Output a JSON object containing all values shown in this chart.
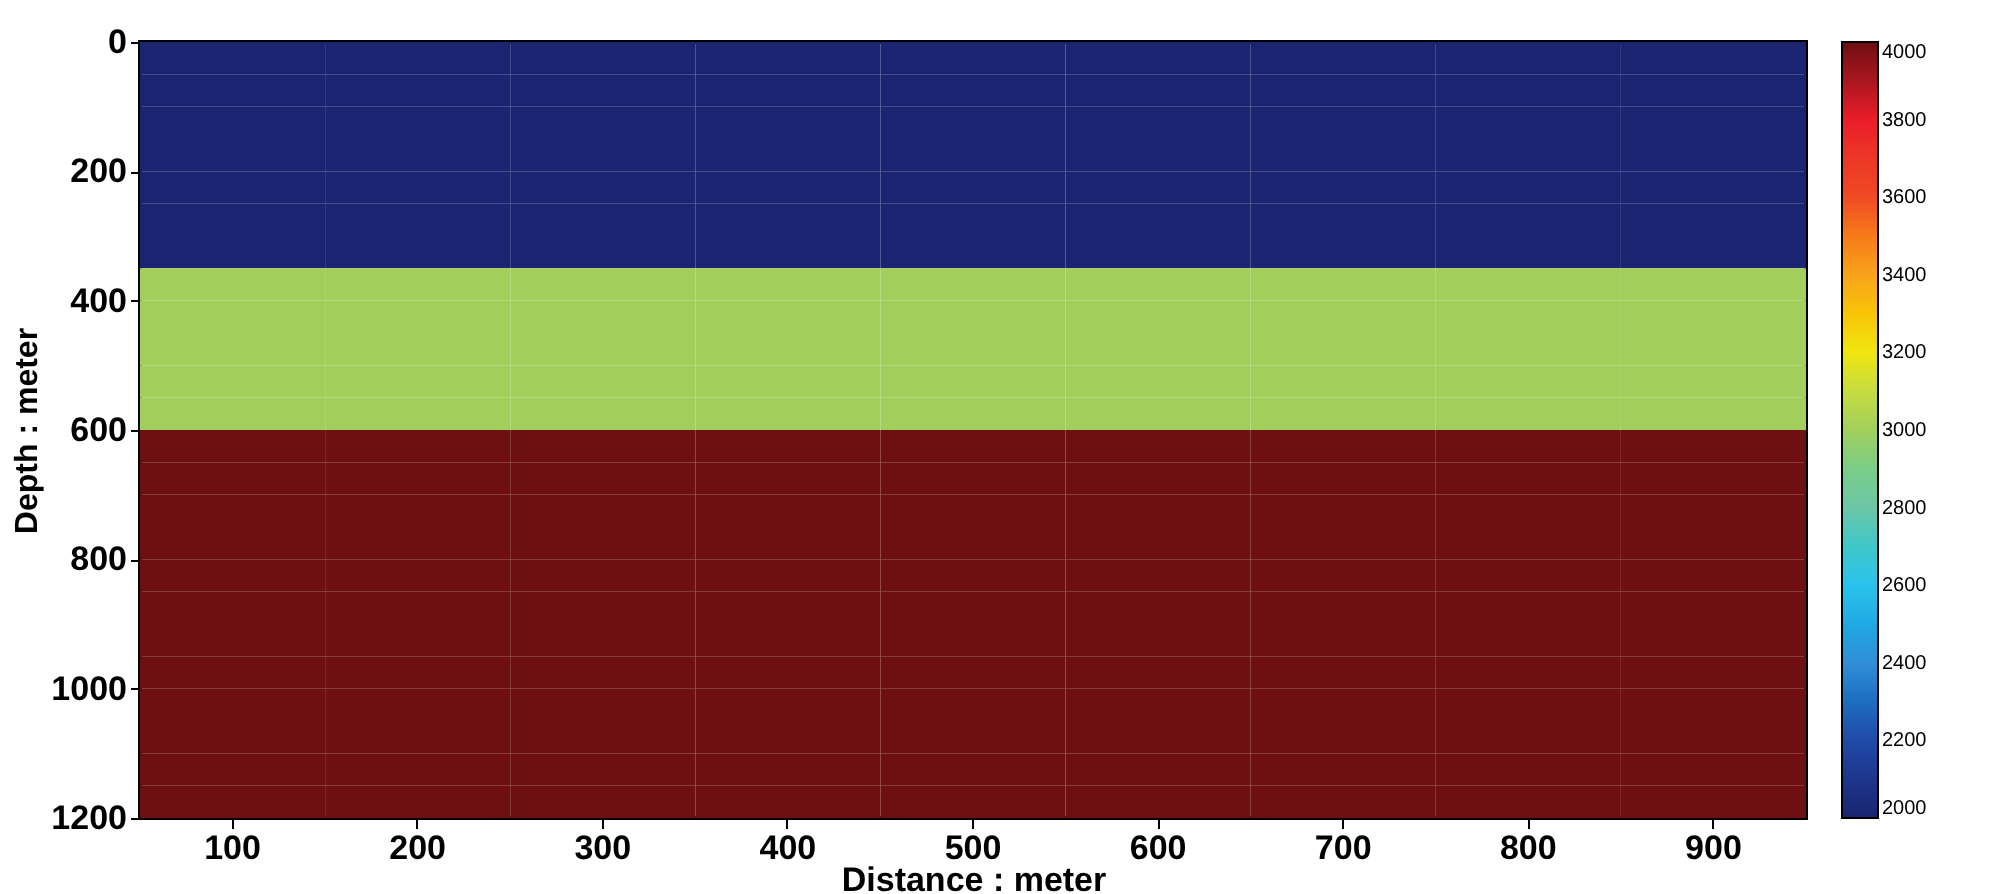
{
  "chart_data": {
    "type": "heatmap",
    "xlabel": "Distance : meter",
    "ylabel": "Depth : meter",
    "categories": [
      "100",
      "200",
      "300",
      "400",
      "500",
      "600",
      "700",
      "800",
      "900"
    ],
    "ylim": [
      1200,
      0
    ],
    "yticks": [
      0,
      200,
      400,
      600,
      800,
      1000,
      1200
    ],
    "cells": [
      [
        2000,
        2000,
        2000,
        2000,
        2000,
        2000,
        2000,
        2000,
        2000
      ],
      [
        2000,
        2000,
        2000,
        2000,
        2000,
        2000,
        2000,
        2000,
        2000
      ],
      [
        2000,
        2000,
        2000,
        2000,
        2000,
        2000,
        2000,
        2000,
        2000
      ],
      [
        2000,
        2000,
        2000,
        2000,
        2000,
        2000,
        2000,
        2000,
        2000
      ],
      [
        2000,
        2000,
        2000,
        2000,
        2000,
        2000,
        2000,
        2000,
        2000
      ],
      [
        2000,
        2000,
        2000,
        2000,
        2000,
        2000,
        2000,
        2000,
        2000
      ],
      [
        2000,
        2000,
        2000,
        2000,
        2000,
        2000,
        2000,
        2000,
        2000
      ],
      [
        3000,
        3000,
        3000,
        3000,
        3000,
        3000,
        3000,
        3000,
        3000
      ],
      [
        3000,
        3000,
        3000,
        3000,
        3000,
        3000,
        3000,
        3000,
        3000
      ],
      [
        3000,
        3000,
        3000,
        3000,
        3000,
        3000,
        3000,
        3000,
        3000
      ],
      [
        3000,
        3000,
        3000,
        3000,
        3000,
        3000,
        3000,
        3000,
        3000
      ],
      [
        3000,
        3000,
        3000,
        3000,
        3000,
        3000,
        3000,
        3000,
        3000
      ],
      [
        4000,
        4000,
        4000,
        4000,
        4000,
        4000,
        4000,
        4000,
        4000
      ],
      [
        4000,
        4000,
        4000,
        4000,
        4000,
        4000,
        4000,
        4000,
        4000
      ],
      [
        4000,
        4000,
        4000,
        4000,
        4000,
        4000,
        4000,
        4000,
        4000
      ],
      [
        4000,
        4000,
        4000,
        4000,
        4000,
        4000,
        4000,
        4000,
        4000
      ],
      [
        4000,
        4000,
        4000,
        4000,
        4000,
        4000,
        4000,
        4000,
        4000
      ],
      [
        4000,
        4000,
        4000,
        4000,
        4000,
        4000,
        4000,
        4000,
        4000
      ],
      [
        4000,
        4000,
        4000,
        4000,
        4000,
        4000,
        4000,
        4000,
        4000
      ],
      [
        4000,
        4000,
        4000,
        4000,
        4000,
        4000,
        4000,
        4000,
        4000
      ],
      [
        4000,
        4000,
        4000,
        4000,
        4000,
        4000,
        4000,
        4000,
        4000
      ],
      [
        4000,
        4000,
        4000,
        4000,
        4000,
        4000,
        4000,
        4000,
        4000
      ],
      [
        4000,
        4000,
        4000,
        4000,
        4000,
        4000,
        4000,
        4000,
        4000
      ],
      [
        4000,
        4000,
        4000,
        4000,
        4000,
        4000,
        4000,
        4000,
        4000
      ]
    ],
    "clim": [
      2000,
      4000
    ],
    "cticks": [
      2000,
      2200,
      2400,
      2600,
      2800,
      3000,
      3200,
      3400,
      3600,
      3800,
      4000
    ]
  }
}
